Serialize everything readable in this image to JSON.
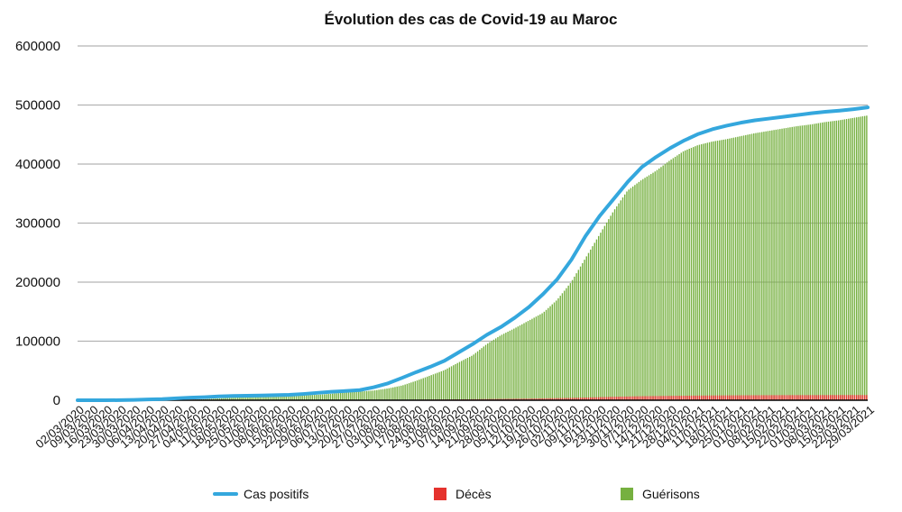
{
  "chart_data": {
    "type": "bar",
    "title": "Évolution des cas de Covid-19 au Maroc",
    "xlabel": "",
    "ylabel": "",
    "ylim": [
      0,
      600000
    ],
    "yticks": [
      "0",
      "100000",
      "200000",
      "300000",
      "400000",
      "500000",
      "600000"
    ],
    "grid": true,
    "legend_position": "bottom",
    "colors": {
      "cas": "#34a7dd",
      "deces": "#e5322d",
      "guerisons": "#76b040",
      "grid": "#b3b3b3",
      "axis": "#000000"
    },
    "x_tick_labels": [
      "02/03/2020",
      "09/03/2020",
      "16/03/2020",
      "23/03/2020",
      "30/03/2020",
      "06/04/2020",
      "13/04/2020",
      "20/04/2020",
      "27/04/2020",
      "04/05/2020",
      "11/05/2020",
      "18/05/2020",
      "25/05/2020",
      "01/06/2020",
      "08/06/2020",
      "15/06/2020",
      "22/06/2020",
      "29/06/2020",
      "06/07/2020",
      "13/07/2020",
      "20/07/2020",
      "27/07/2020",
      "03/08/2020",
      "10/08/2020",
      "17/08/2020",
      "24/08/2020",
      "31/08/2020",
      "07/09/2020",
      "14/09/2020",
      "21/09/2020",
      "28/09/2020",
      "05/10/2020",
      "12/10/2020",
      "19/10/2020",
      "26/10/2020",
      "02/11/2020",
      "09/11/2020",
      "16/11/2020",
      "23/11/2020",
      "30/11/2020",
      "07/12/2020",
      "14/12/2020",
      "21/12/2020",
      "28/12/2020",
      "04/01/2021",
      "11/01/2021",
      "18/01/2021",
      "25/01/2021",
      "01/02/2021",
      "08/02/2021",
      "15/02/2021",
      "22/02/2021",
      "01/03/2021",
      "08/03/2021",
      "15/03/2021",
      "22/03/2021",
      "29/03/2021"
    ],
    "series": [
      {
        "name": "Cas positifs",
        "kind": "line",
        "values": [
          0,
          2,
          20,
          130,
          560,
          1280,
          1880,
          3200,
          4300,
          5200,
          6500,
          7200,
          7600,
          8000,
          8600,
          9200,
          10600,
          12500,
          14400,
          15600,
          17200,
          22000,
          28600,
          37900,
          47600,
          56600,
          66800,
          80900,
          95000,
          110700,
          124000,
          140000,
          158000,
          180000,
          205000,
          238000,
          278000,
          312000,
          341000,
          370000,
          395000,
          412000,
          427000,
          440000,
          451000,
          459000,
          465000,
          470000,
          474000,
          477000,
          480000,
          483000,
          486000,
          488500,
          490500,
          493000,
          496000
        ]
      },
      {
        "name": "Décès",
        "kind": "bar",
        "values": [
          0,
          0,
          1,
          4,
          35,
          100,
          130,
          150,
          180,
          190,
          200,
          205,
          210,
          212,
          213,
          235,
          240,
          250,
          255,
          265,
          280,
          340,
          460,
          670,
          860,
          1040,
          1210,
          1450,
          1690,
          1960,
          2170,
          2440,
          2700,
          3130,
          3500,
          3900,
          4500,
          5200,
          5800,
          6300,
          6800,
          7100,
          7400,
          7600,
          7800,
          8000,
          8150,
          8300,
          8400,
          8500,
          8600,
          8650,
          8700,
          8750,
          8800,
          8800,
          8800
        ]
      },
      {
        "name": "Guérisons",
        "kind": "bar",
        "values": [
          0,
          0,
          1,
          5,
          30,
          100,
          220,
          400,
          800,
          1800,
          3200,
          4500,
          5400,
          6800,
          7700,
          8000,
          8500,
          9200,
          11000,
          13000,
          14600,
          16500,
          20000,
          25000,
          33000,
          42000,
          51000,
          64000,
          76000,
          95000,
          110000,
          122000,
          135000,
          148000,
          170000,
          200000,
          240000,
          280000,
          320000,
          355000,
          373000,
          388000,
          406000,
          422000,
          432000,
          438000,
          442000,
          447000,
          452000,
          456000,
          460000,
          464000,
          467000,
          471000,
          474000,
          478000,
          482000
        ]
      }
    ]
  }
}
